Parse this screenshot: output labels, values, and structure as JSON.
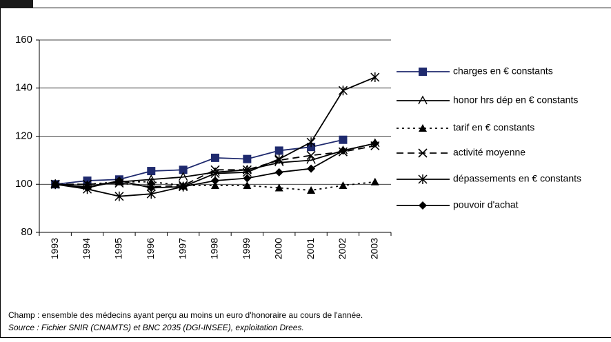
{
  "chart_data": {
    "type": "line",
    "categories": [
      "1993",
      "1994",
      "1995",
      "1996",
      "1997",
      "1998",
      "1999",
      "2000",
      "2001",
      "2002",
      "2003"
    ],
    "ylim": [
      80,
      160
    ],
    "yticks": [
      80,
      100,
      120,
      140,
      160
    ],
    "grid": true,
    "legend": "right",
    "series": [
      {
        "name": "charges en € constants",
        "color": "#1f2a6e",
        "marker": "square",
        "dash": "solid",
        "values": [
          100,
          101.5,
          102,
          105.5,
          106,
          111,
          110.5,
          114,
          115.5,
          118.5,
          null
        ]
      },
      {
        "name": "honor hrs dép en € constants",
        "color": "#000000",
        "marker": "open-triangle",
        "dash": "solid",
        "values": [
          100,
          99,
          101,
          102,
          103,
          105,
          106,
          109,
          110,
          114,
          117
        ]
      },
      {
        "name": "tarif en € constants",
        "color": "#000000",
        "marker": "triangle",
        "dash": "dotted",
        "values": [
          100,
          100,
          101,
          101,
          99.5,
          99.5,
          99.5,
          98.5,
          97.5,
          99.5,
          101
        ]
      },
      {
        "name": "activité moyenne",
        "color": "#000000",
        "marker": "x",
        "dash": "dashed",
        "values": [
          100,
          100,
          100.5,
          99,
          99.5,
          106,
          106,
          110,
          112,
          113.5,
          116
        ]
      },
      {
        "name": "dépassements en € constants",
        "color": "#000000",
        "marker": "asterisk",
        "dash": "solid",
        "values": [
          100,
          98,
          95,
          96,
          99,
          104.5,
          105,
          110.5,
          117.5,
          139,
          144.5
        ]
      },
      {
        "name": "pouvoir d'achat",
        "color": "#000000",
        "marker": "diamond",
        "dash": "solid",
        "values": [
          100,
          98.5,
          101.5,
          98.5,
          99,
          101.5,
          102.5,
          105,
          106.5,
          114,
          117
        ]
      }
    ],
    "notes": [
      "Champ : ensemble des médecins ayant perçu au moins un euro d'honoraire au cours de l'année.",
      "Source : Fichier SNIR (CNAMTS) et BNC 2035 (DGI-INSEE), exploitation Drees."
    ]
  }
}
